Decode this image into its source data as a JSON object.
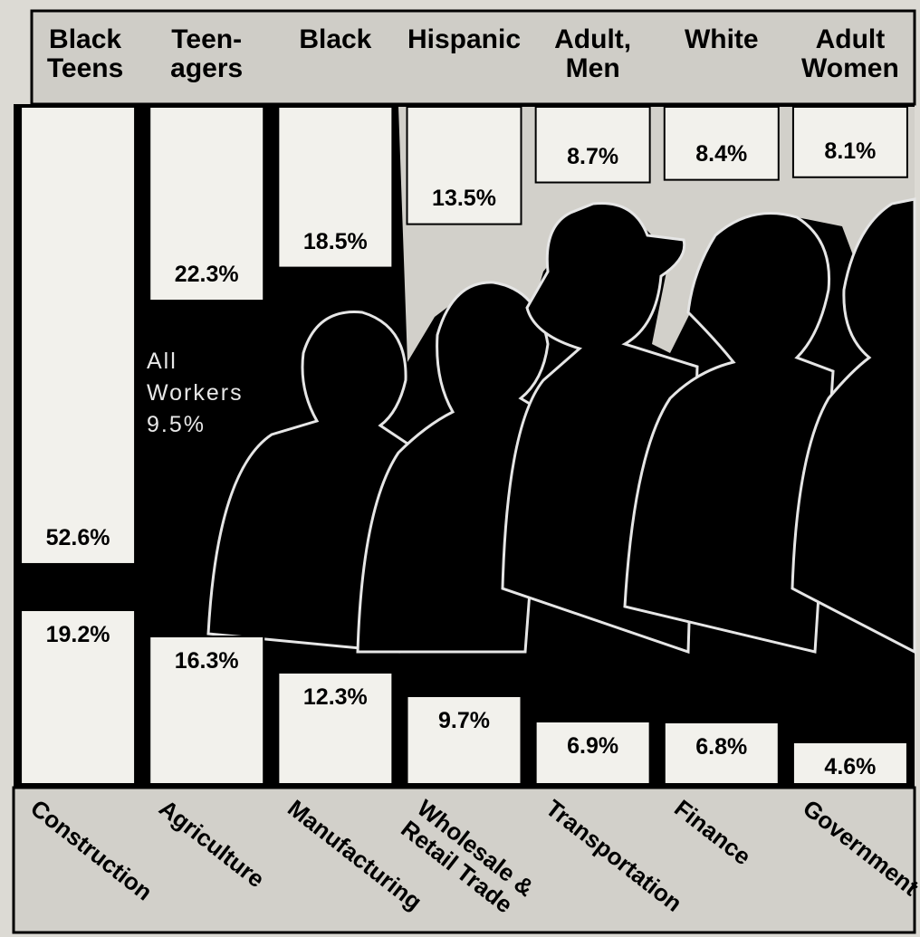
{
  "chart_data": [
    {
      "type": "bar",
      "orientation": "down",
      "categories": [
        "Black\nTeens",
        "Teen-\nagers",
        "Black",
        "Hispanic",
        "Adult,\nMen",
        "White",
        "Adult\nWomen"
      ],
      "values": [
        52.6,
        22.3,
        18.5,
        13.5,
        8.7,
        8.4,
        8.1
      ],
      "value_labels": [
        "52.6%",
        "22.3%",
        "18.5%",
        "13.5%",
        "8.7%",
        "8.4%",
        "8.1%"
      ],
      "color": "#f2f1ec",
      "annotation": "All\nWorkers\n9.5%"
    },
    {
      "type": "bar",
      "orientation": "up",
      "categories": [
        "Construction",
        "Agriculture",
        "Manufacturing",
        "Wholesale &\nRetail Trade",
        "Transportation",
        "Finance",
        "Government"
      ],
      "values": [
        19.2,
        16.3,
        12.3,
        9.7,
        6.9,
        6.8,
        4.6
      ],
      "value_labels": [
        "19.2%",
        "16.3%",
        "12.3%",
        "9.7%",
        "6.9%",
        "6.8%",
        "4.6%"
      ],
      "color": "#f2f1ec"
    }
  ]
}
